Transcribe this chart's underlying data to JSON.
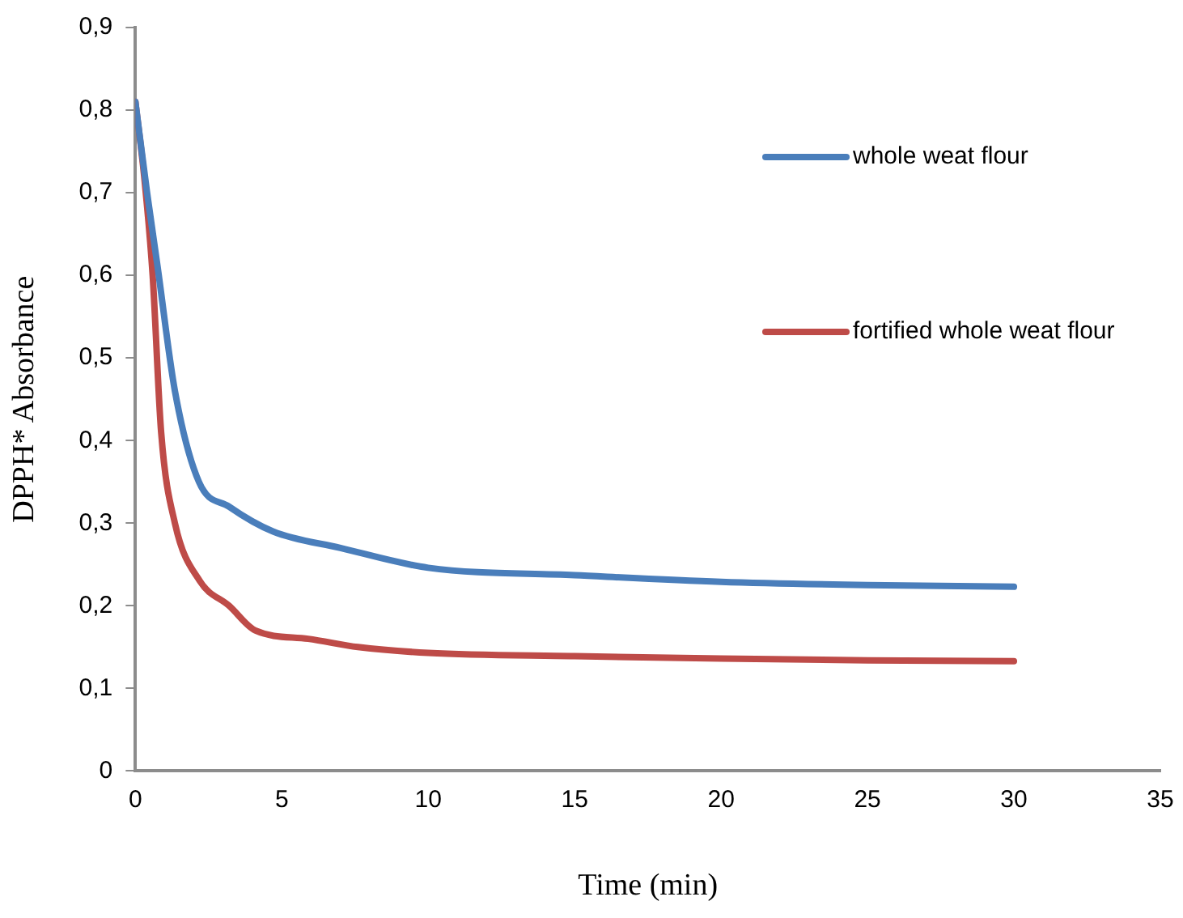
{
  "chart_data": {
    "type": "line",
    "xlabel": "Time (min)",
    "ylabel": "DPPH* Absorbance",
    "xlim": [
      0,
      35
    ],
    "xticks": [
      0,
      5,
      10,
      15,
      20,
      25,
      30,
      35
    ],
    "ylim": [
      0,
      0.9
    ],
    "yticks": [
      {
        "value": 0,
        "label": "0"
      },
      {
        "value": 0.1,
        "label": "0,1"
      },
      {
        "value": 0.2,
        "label": "0,2"
      },
      {
        "value": 0.3,
        "label": "0,3"
      },
      {
        "value": 0.4,
        "label": "0,4"
      },
      {
        "value": 0.5,
        "label": "0,5"
      },
      {
        "value": 0.6,
        "label": "0,6"
      },
      {
        "value": 0.7,
        "label": "0,7"
      },
      {
        "value": 0.8,
        "label": "0,8"
      },
      {
        "value": 0.9,
        "label": "0,9"
      }
    ],
    "grid": false,
    "legend": "top right",
    "marker": "none",
    "line_style": "solid",
    "series": [
      {
        "name": "whole weat flour",
        "color": "#4a7ebb",
        "x": [
          0,
          0.4,
          0.76,
          1.35,
          2.17,
          3.2,
          4.7,
          7,
          10,
          15,
          20,
          25,
          30
        ],
        "values": [
          0.81,
          0.7,
          0.61,
          0.46,
          0.35,
          0.32,
          0.29,
          0.27,
          0.246,
          0.237,
          0.229,
          0.225,
          0.223
        ]
      },
      {
        "name": "fortified whole weat flour",
        "color": "#be4b48",
        "x": [
          0,
          0.3,
          0.59,
          0.88,
          1.35,
          2.2,
          3.2,
          4.1,
          5.9,
          7.6,
          10,
          15,
          20,
          25,
          30
        ],
        "values": [
          0.81,
          0.72,
          0.6,
          0.41,
          0.3,
          0.23,
          0.2,
          0.17,
          0.16,
          0.15,
          0.143,
          0.139,
          0.136,
          0.134,
          0.133
        ]
      }
    ]
  }
}
